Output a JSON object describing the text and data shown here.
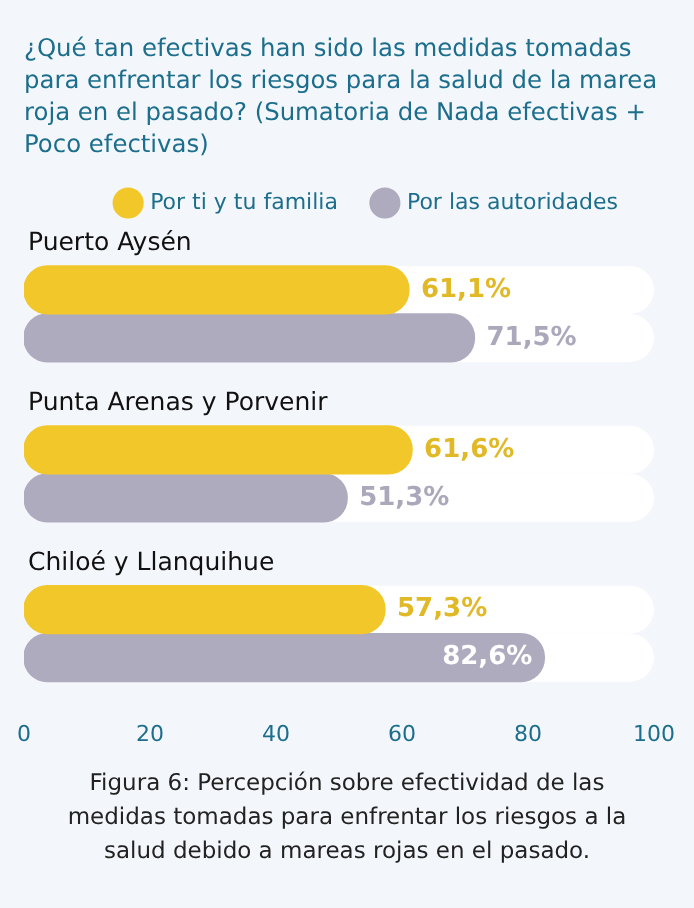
{
  "chart_data": {
    "type": "bar",
    "orientation": "horizontal",
    "title": "¿Qué tan efectivas han sido las medidas tomadas para enfrentar los riesgos para la salud de la marea roja en el pasado? (Sumatoria de Nada efectivas + Poco efectivas)",
    "categories": [
      "Puerto Aysén",
      "Punta Arenas y Porvenir",
      "Chiloé y Llanquihue"
    ],
    "series": [
      {
        "name": "Por ti y tu familia",
        "color": "#f2c72a",
        "values": [
          61.1,
          61.6,
          57.3
        ],
        "value_labels": [
          "61,1%",
          "61,6%",
          "57,3%"
        ]
      },
      {
        "name": "Por las autoridades",
        "color": "#aeabbf",
        "values": [
          71.5,
          51.3,
          82.6
        ],
        "value_labels": [
          "71,5%",
          "51,3%",
          "82,6%"
        ]
      }
    ],
    "xlim": [
      0,
      100
    ],
    "xticks": [
      0,
      20,
      40,
      60,
      80,
      100
    ],
    "grid": false,
    "legend": "top right",
    "annotations": [
      "Figura 6: Percepción sobre efectividad de las medidas tomadas para enfrentar los riesgos a la salud debido a mareas rojas en el pasado."
    ]
  }
}
